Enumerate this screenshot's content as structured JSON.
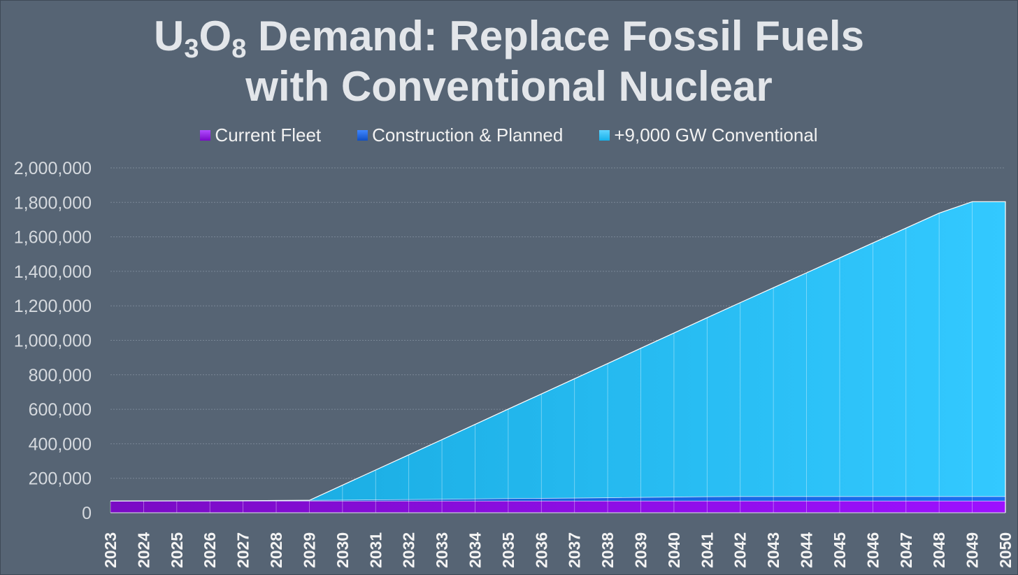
{
  "chart_data": {
    "type": "area",
    "stacked": true,
    "title_main": "U",
    "title_sub1": "3",
    "title_mid": "O",
    "title_sub2": "8",
    "title_rest": " Demand: Replace Fossil Fuels",
    "title_line2": "with Conventional Nuclear",
    "xlabel": "",
    "ylabel": "",
    "ylim": [
      0,
      2000000
    ],
    "yticks": [
      0,
      200000,
      400000,
      600000,
      800000,
      1000000,
      1200000,
      1400000,
      1600000,
      1800000,
      2000000
    ],
    "ytick_labels": [
      "0",
      "200,000",
      "400,000",
      "600,000",
      "800,000",
      "1,000,000",
      "1,200,000",
      "1,400,000",
      "1,600,000",
      "1,800,000",
      "2,000,000"
    ],
    "grid": true,
    "legend_position": "top",
    "x": [
      "2023",
      "2024",
      "2025",
      "2026",
      "2027",
      "2028",
      "2029",
      "2030",
      "2031",
      "2032",
      "2033",
      "2034",
      "2035",
      "2036",
      "2037",
      "2038",
      "2039",
      "2040",
      "2041",
      "2042",
      "2043",
      "2044",
      "2045",
      "2046",
      "2047",
      "2048",
      "2049",
      "2050"
    ],
    "series": [
      {
        "name": "Current Fleet",
        "color": "#8f0ae8",
        "values": [
          68000,
          68000,
          68000,
          68000,
          68000,
          68000,
          68000,
          68000,
          68000,
          68000,
          68000,
          68000,
          68000,
          68000,
          68000,
          68000,
          68000,
          68000,
          68000,
          68000,
          68000,
          68000,
          68000,
          68000,
          68000,
          68000,
          68000,
          68000
        ]
      },
      {
        "name": "Construction & Planned",
        "color": "#1663e6",
        "values": [
          0,
          500,
          1000,
          1500,
          2000,
          3000,
          4000,
          5500,
          7000,
          8500,
          10000,
          12000,
          14000,
          15500,
          17000,
          19000,
          21000,
          23000,
          25000,
          26000,
          26000,
          26000,
          26000,
          26000,
          26000,
          26000,
          26000,
          26000
        ]
      },
      {
        "name": "+9,000 GW Conventional",
        "color": "#22bdf2",
        "values": [
          0,
          0,
          0,
          0,
          0,
          0,
          0,
          86500,
          173000,
          259500,
          346000,
          432500,
          519000,
          605500,
          692000,
          778500,
          865000,
          951500,
          1038000,
          1124500,
          1211000,
          1297500,
          1384000,
          1470500,
          1557000,
          1643500,
          1710000,
          1710000
        ]
      }
    ]
  }
}
